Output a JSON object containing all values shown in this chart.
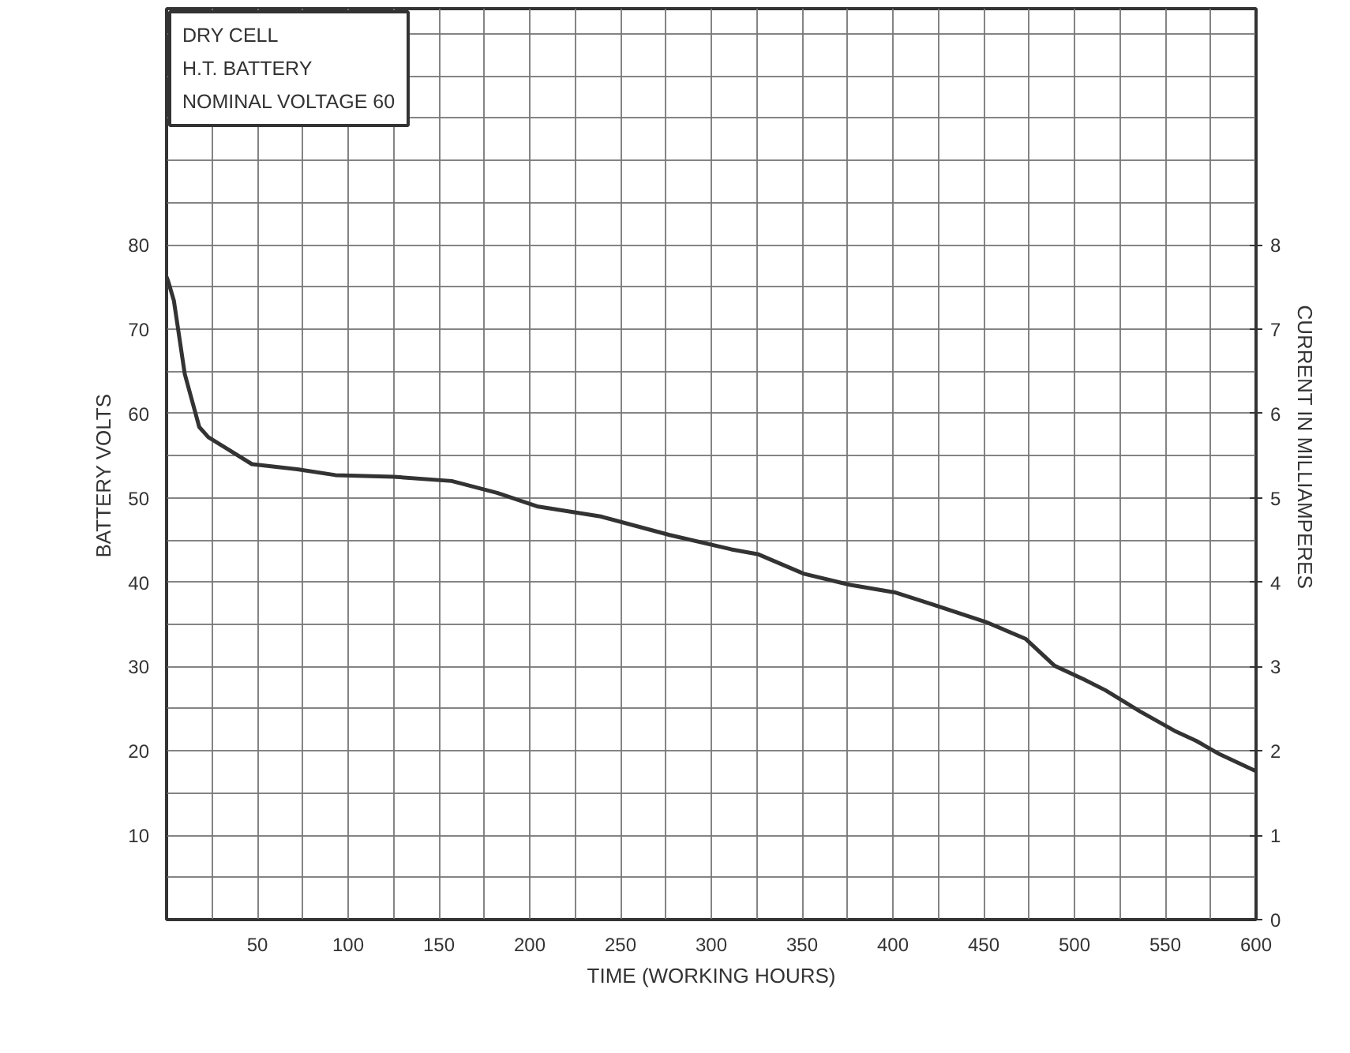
{
  "chart_data": {
    "type": "line",
    "xlabel": "TIME (WORKING HOURS)",
    "ylabel": "BATTERY     VOLTS",
    "y2label": "CURRENT    IN    MILLIAMPERES",
    "annotations": [
      "DRY CELL",
      "H.T. BATTERY",
      "NOMINAL VOLTAGE 60"
    ],
    "x": [
      0,
      1,
      4,
      10,
      18,
      23,
      32,
      47,
      72,
      93,
      125,
      157,
      182,
      204,
      239,
      277,
      311,
      326,
      351,
      376,
      401,
      420,
      451,
      473,
      489,
      505,
      517,
      536,
      555,
      567,
      580,
      600
    ],
    "series": [
      {
        "color": "#333333",
        "values": [
          76.2,
          75.6,
          73.4,
          64.7,
          58.4,
          57.2,
          56,
          54,
          53.4,
          52.7,
          52.5,
          52,
          50.6,
          49,
          47.8,
          45.6,
          43.9,
          43.3,
          41,
          39.7,
          38.8,
          37.5,
          35.3,
          33.3,
          30.1,
          28.5,
          27.2,
          24.7,
          22.4,
          21.2,
          19.6,
          17.6
        ]
      }
    ],
    "xlim": [
      0,
      600
    ],
    "ylim": [
      0,
      108
    ],
    "y2lim": [
      0,
      10.8
    ],
    "xticks": [
      50,
      100,
      150,
      200,
      250,
      300,
      350,
      400,
      450,
      500,
      550,
      600
    ],
    "yticks": [
      10,
      20,
      30,
      40,
      50,
      60,
      70,
      80
    ],
    "y2ticks": [
      0,
      1,
      2,
      3,
      4,
      5,
      6,
      7,
      8
    ],
    "grid": true,
    "line_style": "solid",
    "marker": "none"
  }
}
